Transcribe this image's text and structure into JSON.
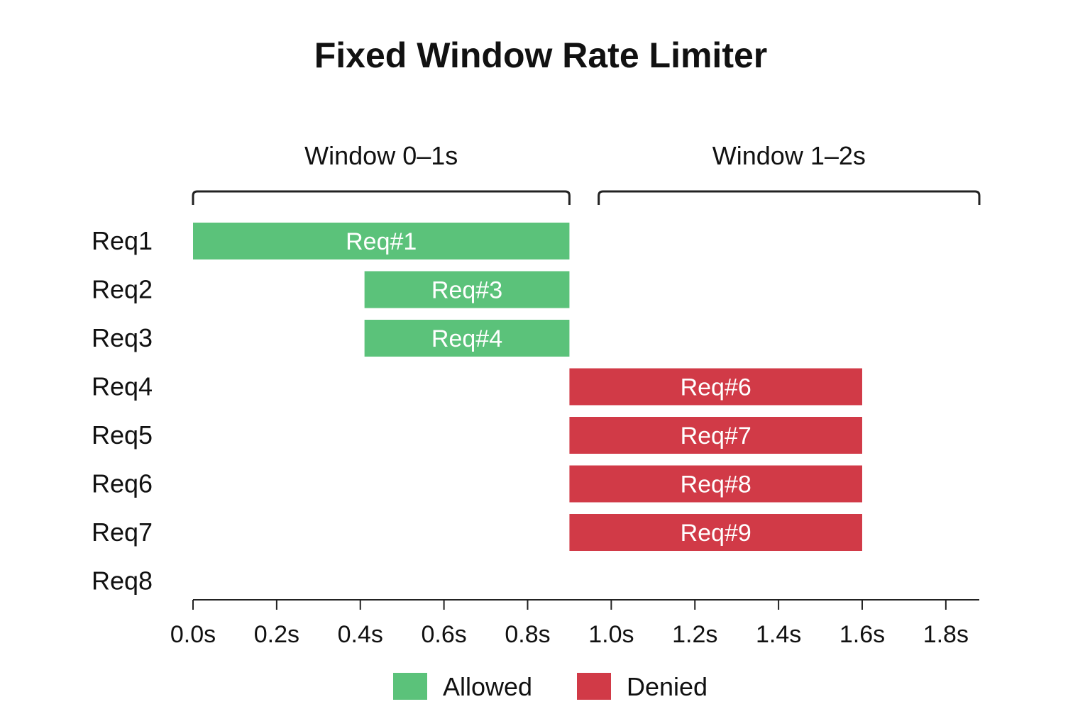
{
  "chart_data": {
    "type": "bar",
    "orientation": "horizontal-timeline",
    "title": "Fixed Window Rate Limiter",
    "windows": [
      {
        "label": "Window 0–1s",
        "start": 0.0,
        "end": 0.9
      },
      {
        "label": "Window 1–2s",
        "start": 0.97,
        "end": 1.88
      }
    ],
    "rows": [
      "Req1",
      "Req2",
      "Req3",
      "Req4",
      "Req5",
      "Req6",
      "Req7",
      "Req8"
    ],
    "bars": [
      {
        "row": 0,
        "label": "Req#1",
        "start": 0.0,
        "end": 0.9,
        "status": "allowed"
      },
      {
        "row": 1,
        "label": "Req#3",
        "start": 0.41,
        "end": 0.9,
        "status": "allowed"
      },
      {
        "row": 2,
        "label": "Req#4",
        "start": 0.41,
        "end": 0.9,
        "status": "allowed"
      },
      {
        "row": 3,
        "label": "Req#6",
        "start": 0.9,
        "end": 1.6,
        "status": "denied"
      },
      {
        "row": 4,
        "label": "Req#7",
        "start": 0.9,
        "end": 1.6,
        "status": "denied"
      },
      {
        "row": 5,
        "label": "Req#8",
        "start": 0.9,
        "end": 1.6,
        "status": "denied"
      },
      {
        "row": 6,
        "label": "Req#9",
        "start": 0.9,
        "end": 1.6,
        "status": "denied"
      }
    ],
    "xticks": [
      {
        "value": 0.0,
        "label": "0.0s"
      },
      {
        "value": 0.2,
        "label": "0.2s"
      },
      {
        "value": 0.4,
        "label": "0.4s"
      },
      {
        "value": 0.6,
        "label": "0.6s"
      },
      {
        "value": 0.8,
        "label": "0.8s"
      },
      {
        "value": 1.0,
        "label": "1.0s"
      },
      {
        "value": 1.2,
        "label": "1.2s"
      },
      {
        "value": 1.4,
        "label": "1.4s"
      },
      {
        "value": 1.6,
        "label": "1.6s"
      },
      {
        "value": 1.8,
        "label": "1.8s"
      }
    ],
    "xlim": [
      0.0,
      1.88
    ],
    "grid": false,
    "legend": {
      "placement": "bottom-center",
      "items": [
        {
          "status": "allowed",
          "label": "Allowed"
        },
        {
          "status": "denied",
          "label": "Denied"
        }
      ]
    },
    "colors": {
      "allowed": "#5bc27a",
      "denied": "#d13a47",
      "axis": "#222222",
      "text": "#111111"
    }
  }
}
